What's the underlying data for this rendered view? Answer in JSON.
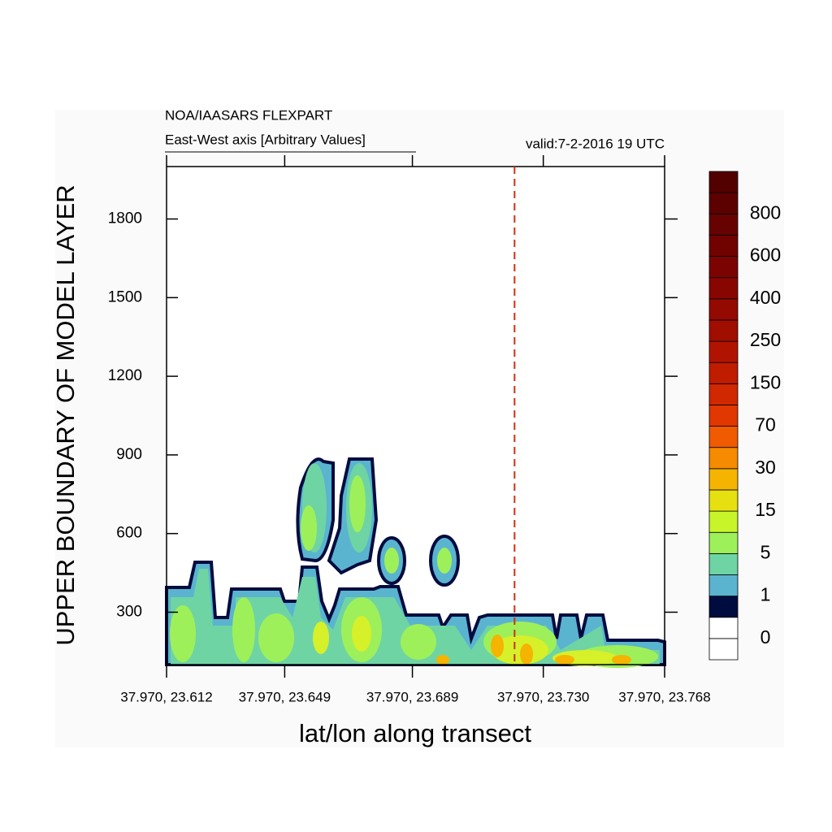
{
  "chart_data": {
    "type": "contour",
    "title": "NOA/IAASARS FLEXPART",
    "subtitle": "East-West axis [Arbitrary Values]",
    "valid_time": "valid:7-2-2016 19 UTC",
    "x_label": "lat/lon along transect",
    "y_label": "UPPER BOUNDARY OF MODEL LAYER",
    "xlim": [
      23.612,
      23.768
    ],
    "xticks": [
      {
        "value": 23.612,
        "label": "37.970, 23.612"
      },
      {
        "value": 23.649,
        "label": "37.970, 23.649"
      },
      {
        "value": 23.689,
        "label": "37.970, 23.689"
      },
      {
        "value": 23.73,
        "label": "37.970, 23.730"
      },
      {
        "value": 23.768,
        "label": "37.970, 23.768"
      }
    ],
    "ylim": [
      100,
      2000
    ],
    "yticks": [
      300,
      600,
      900,
      1200,
      1500,
      1800
    ],
    "marker_x": 23.721,
    "marker_color": "#d03010",
    "colorbar": {
      "colors": [
        "#ffffff",
        "#ffffff",
        "#000b3f",
        "#5ab4cf",
        "#6fd4a4",
        "#9ef05a",
        "#c8f52a",
        "#e6e010",
        "#f4b400",
        "#f68a00",
        "#f05a00",
        "#e03800",
        "#d02800",
        "#c01c00",
        "#b01400",
        "#a00e00",
        "#940a00",
        "#880600",
        "#7c0400",
        "#700200",
        "#660200",
        "#5c0000",
        "#520000"
      ],
      "labels": [
        0,
        1,
        5,
        15,
        30,
        70,
        150,
        250,
        400,
        600,
        800
      ]
    }
  }
}
